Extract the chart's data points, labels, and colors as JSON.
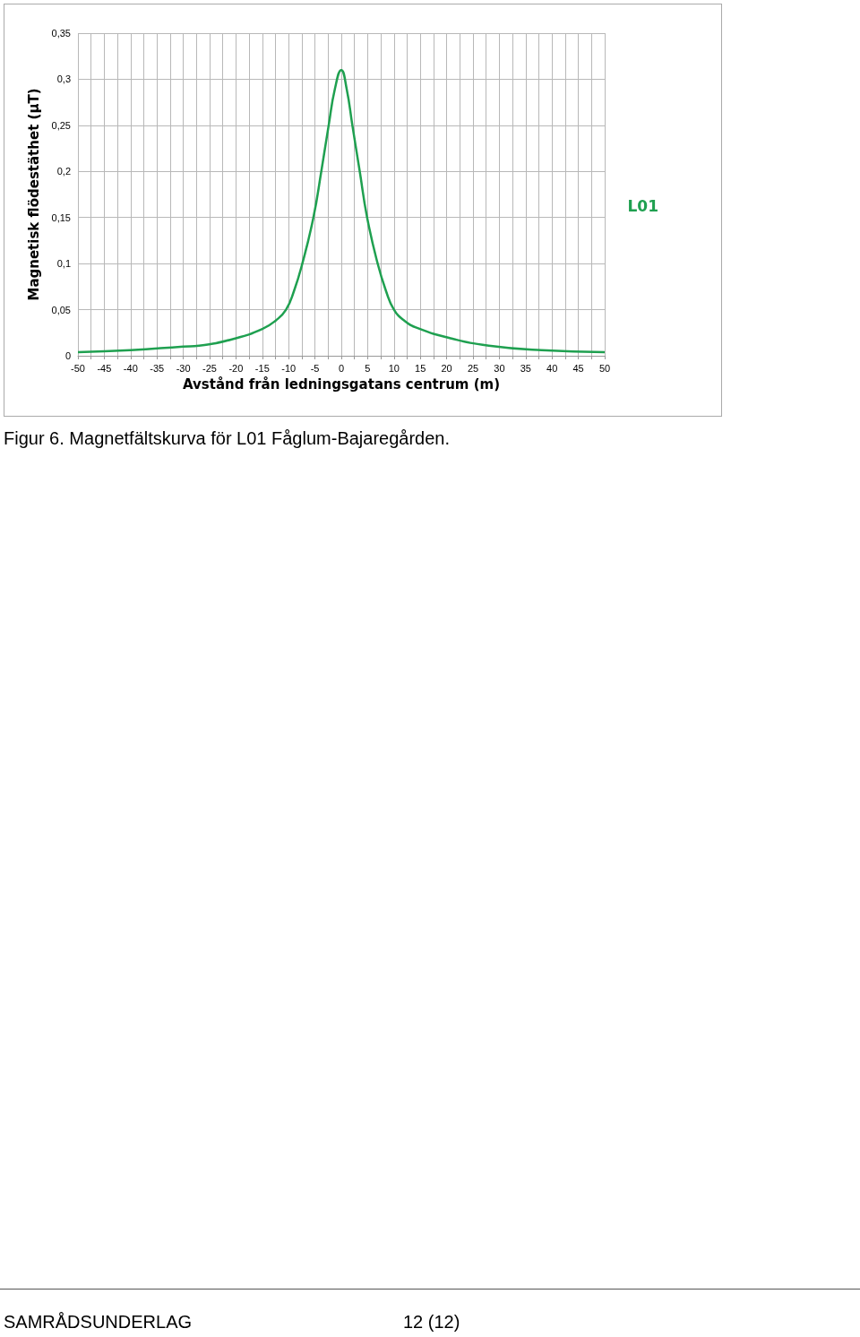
{
  "chart_data": {
    "type": "line",
    "xlabel": "Avstånd från ledningsgatans centrum (m)",
    "ylabel": "Magnetisk flödestäthet (µT)",
    "series": [
      {
        "name": "L01",
        "color": "#1fa050",
        "x": [
          -50,
          -40,
          -30,
          -27,
          -20,
          -15,
          -12.5,
          -10.5,
          -9,
          -7.4,
          -5.3,
          -3.8,
          -2.4,
          -1.2,
          0,
          1,
          2.1,
          3.5,
          4.9,
          6.9,
          8.5,
          10,
          12,
          14.5,
          20.7,
          28,
          38,
          50
        ],
        "values": [
          0.004,
          0.006,
          0.01,
          0.011,
          0.019,
          0.029,
          0.038,
          0.05,
          0.07,
          0.1,
          0.15,
          0.2,
          0.25,
          0.29,
          0.31,
          0.29,
          0.25,
          0.2,
          0.15,
          0.1,
          0.07,
          0.05,
          0.038,
          0.03,
          0.019,
          0.011,
          0.006,
          0.004
        ]
      }
    ],
    "xlim": [
      -50,
      50
    ],
    "xticks": [
      -50,
      {
        "value": -47.5,
        "label": null
      },
      -45,
      {
        "value": -42.5,
        "label": null
      },
      -40,
      {
        "value": -37.5,
        "label": null
      },
      -35,
      {
        "value": -32.5,
        "label": null
      },
      -30,
      {
        "value": -27.5,
        "label": null
      },
      -25,
      {
        "value": -22.5,
        "label": null
      },
      -20,
      {
        "value": -17.5,
        "label": null
      },
      -15,
      {
        "value": -12.5,
        "label": null
      },
      -10,
      {
        "value": -7.5,
        "label": null
      },
      -5,
      {
        "value": -2.5,
        "label": null
      },
      0,
      {
        "value": 2.5,
        "label": null
      },
      5,
      {
        "value": 7.5,
        "label": null
      },
      10,
      {
        "value": 12.5,
        "label": null
      },
      15,
      {
        "value": 17.5,
        "label": null
      },
      20,
      {
        "value": 22.5,
        "label": null
      },
      25,
      {
        "value": 27.5,
        "label": null
      },
      30,
      {
        "value": 32.5,
        "label": null
      },
      35,
      {
        "value": 37.5,
        "label": null
      },
      40,
      {
        "value": 42.5,
        "label": null
      },
      45,
      {
        "value": 47.5,
        "label": null
      },
      50
    ],
    "ylim": [
      0,
      0.35
    ],
    "yticks": [
      0,
      {
        "value": 0.05,
        "label": "0,05"
      },
      {
        "value": 0.1,
        "label": "0,1"
      },
      {
        "value": 0.15,
        "label": "0,15"
      },
      {
        "value": 0.2,
        "label": "0,2"
      },
      {
        "value": 0.25,
        "label": "0,25"
      },
      {
        "value": 0.3,
        "label": "0,3"
      },
      {
        "value": 0.35,
        "label": "0,35"
      }
    ],
    "grid": true,
    "legend": false,
    "marker": "none",
    "line_style": "solid",
    "annotations": [
      "Figur 6. Magnetfältskurva för L01 Fåglum-Bajaregården.",
      "SAMRÅDSUNDERLAG",
      "12 (12)"
    ]
  }
}
